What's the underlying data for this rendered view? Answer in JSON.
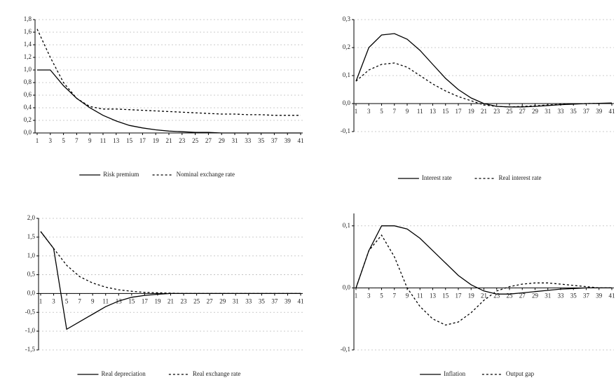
{
  "chart_data": [
    {
      "type": "line",
      "grid": true,
      "x": [
        1,
        3,
        5,
        7,
        9,
        11,
        13,
        15,
        17,
        19,
        21,
        23,
        25,
        27,
        29,
        31,
        33,
        35,
        37,
        39,
        41
      ],
      "xticks": [
        1,
        3,
        5,
        7,
        9,
        11,
        13,
        15,
        17,
        19,
        21,
        23,
        25,
        27,
        29,
        31,
        33,
        35,
        37,
        39,
        41
      ],
      "ylim": [
        0,
        1.8
      ],
      "yticks": [
        {
          "value": 0,
          "label": "0,0"
        },
        {
          "value": 0.2,
          "label": "0,2"
        },
        {
          "value": 0.4,
          "label": "0,4"
        },
        {
          "value": 0.6,
          "label": "0,6"
        },
        {
          "value": 0.8,
          "label": "0,8"
        },
        {
          "value": 1.0,
          "label": "1,0"
        },
        {
          "value": 1.2,
          "label": "1,2"
        },
        {
          "value": 1.4,
          "label": "1,4"
        },
        {
          "value": 1.6,
          "label": "1,6"
        },
        {
          "value": 1.8,
          "label": "1,8"
        }
      ],
      "series": [
        {
          "name": "Risk premium",
          "color": "#000000",
          "style": "solid",
          "values": [
            1.0,
            1.0,
            0.75,
            0.55,
            0.4,
            0.28,
            0.19,
            0.12,
            0.08,
            0.05,
            0.03,
            0.02,
            0.01,
            0.01,
            0.0,
            0.0,
            0.0,
            0.0,
            0.0,
            0.0,
            0.0
          ]
        },
        {
          "name": "Nominal exchange rate",
          "color": "#000000",
          "style": "dashed",
          "values": [
            1.65,
            1.2,
            0.8,
            0.55,
            0.42,
            0.38,
            0.38,
            0.37,
            0.36,
            0.35,
            0.34,
            0.33,
            0.32,
            0.31,
            0.3,
            0.3,
            0.29,
            0.29,
            0.28,
            0.28,
            0.28
          ]
        }
      ]
    },
    {
      "type": "line",
      "grid": true,
      "x": [
        1,
        3,
        5,
        7,
        9,
        11,
        13,
        15,
        17,
        19,
        21,
        23,
        25,
        27,
        29,
        31,
        33,
        35,
        37,
        39,
        41
      ],
      "xticks": [
        1,
        3,
        5,
        7,
        9,
        11,
        13,
        15,
        17,
        19,
        21,
        23,
        25,
        27,
        29,
        31,
        33,
        35,
        37,
        39,
        41
      ],
      "ylim": [
        -0.1,
        0.3
      ],
      "yticks": [
        {
          "value": -0.1,
          "label": "-0,1"
        },
        {
          "value": 0,
          "label": "0,0"
        },
        {
          "value": 0.1,
          "label": "0,1"
        },
        {
          "value": 0.2,
          "label": "0,2"
        },
        {
          "value": 0.3,
          "label": "0,3"
        }
      ],
      "series": [
        {
          "name": "Interest rate",
          "color": "#000000",
          "style": "solid",
          "values": [
            0.08,
            0.2,
            0.245,
            0.25,
            0.23,
            0.19,
            0.14,
            0.09,
            0.05,
            0.02,
            0.0,
            -0.01,
            -0.012,
            -0.012,
            -0.01,
            -0.007,
            -0.004,
            -0.002,
            0.0,
            0.001,
            0.002
          ]
        },
        {
          "name": "Real interest rate",
          "color": "#000000",
          "style": "dashed",
          "values": [
            0.08,
            0.12,
            0.14,
            0.145,
            0.13,
            0.1,
            0.07,
            0.045,
            0.025,
            0.01,
            -0.005,
            -0.01,
            -0.012,
            -0.01,
            -0.008,
            -0.005,
            -0.003,
            -0.001,
            0.0,
            0.001,
            0.001
          ]
        }
      ]
    },
    {
      "type": "line",
      "grid": true,
      "x": [
        1,
        3,
        5,
        7,
        9,
        11,
        13,
        15,
        17,
        19,
        21,
        23,
        25,
        27,
        29,
        31,
        33,
        35,
        37,
        39,
        41
      ],
      "xticks": [
        1,
        3,
        5,
        7,
        9,
        11,
        13,
        15,
        17,
        19,
        21,
        23,
        25,
        27,
        29,
        31,
        33,
        35,
        37,
        39,
        41
      ],
      "ylim": [
        -1.5,
        2.0
      ],
      "yticks": [
        {
          "value": -1.5,
          "label": "-1,5"
        },
        {
          "value": -1.0,
          "label": "-1,0"
        },
        {
          "value": -0.5,
          "label": "-0,5"
        },
        {
          "value": 0,
          "label": "0,0"
        },
        {
          "value": 0.5,
          "label": "0,5"
        },
        {
          "value": 1.0,
          "label": "1,0"
        },
        {
          "value": 1.5,
          "label": "1,5"
        },
        {
          "value": 2.0,
          "label": "2,0"
        }
      ],
      "series": [
        {
          "name": "Real depreciation",
          "color": "#000000",
          "style": "solid",
          "values": [
            1.65,
            1.2,
            -0.95,
            -0.75,
            -0.55,
            -0.35,
            -0.2,
            -0.1,
            -0.05,
            -0.02,
            0.0,
            0.0,
            0.0,
            0.0,
            0.0,
            0.0,
            0.0,
            0.0,
            0.0,
            0.0,
            0.0
          ]
        },
        {
          "name": "Real exchange rate",
          "color": "#000000",
          "style": "dashed",
          "values": [
            1.65,
            1.2,
            0.75,
            0.45,
            0.28,
            0.17,
            0.1,
            0.06,
            0.03,
            0.02,
            0.01,
            0.0,
            0.0,
            0.0,
            0.0,
            0.0,
            0.0,
            0.0,
            0.0,
            0.0,
            0.0
          ]
        }
      ]
    },
    {
      "type": "line",
      "grid": true,
      "x": [
        1,
        3,
        5,
        7,
        9,
        11,
        13,
        15,
        17,
        19,
        21,
        23,
        25,
        27,
        29,
        31,
        33,
        35,
        37,
        39,
        41
      ],
      "xticks": [
        1,
        3,
        5,
        7,
        9,
        11,
        13,
        15,
        17,
        19,
        21,
        23,
        25,
        27,
        29,
        31,
        33,
        35,
        37,
        39,
        41
      ],
      "ylim": [
        -0.1,
        0.12
      ],
      "yticks": [
        {
          "value": -0.1,
          "label": "-0,1"
        },
        {
          "value": 0,
          "label": "0,0"
        },
        {
          "value": 0.1,
          "label": "0,1"
        }
      ],
      "series": [
        {
          "name": "Inflation",
          "color": "#000000",
          "style": "solid",
          "values": [
            0.0,
            0.06,
            0.1,
            0.1,
            0.095,
            0.08,
            0.06,
            0.04,
            0.02,
            0.005,
            -0.005,
            -0.01,
            -0.01,
            -0.008,
            -0.006,
            -0.004,
            -0.002,
            -0.001,
            0.0,
            0.0,
            0.0
          ]
        },
        {
          "name": "Output gap",
          "color": "#000000",
          "style": "dashed",
          "values": [
            0.0,
            0.06,
            0.085,
            0.05,
            0.0,
            -0.03,
            -0.05,
            -0.06,
            -0.055,
            -0.04,
            -0.02,
            -0.005,
            0.002,
            0.006,
            0.008,
            0.008,
            0.006,
            0.004,
            0.002,
            0.0,
            0.0
          ]
        }
      ]
    }
  ]
}
